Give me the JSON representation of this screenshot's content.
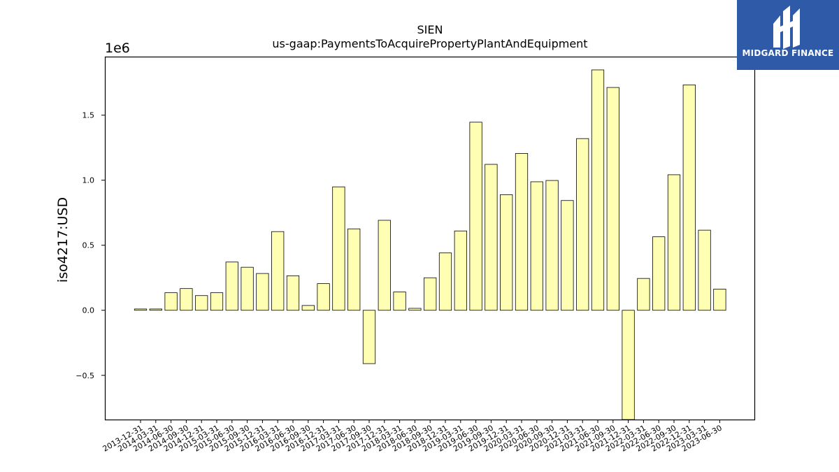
{
  "chart_data": {
    "type": "bar",
    "title": "SIEN",
    "subtitle": "us-gaap:PaymentsToAcquirePropertyPlantAndEquipment",
    "ylabel": "iso4217:USD",
    "xlabel": "",
    "offset_label": "1e6",
    "categories": [
      "2013-12-31",
      "2014-03-31",
      "2014-06-30",
      "2014-09-30",
      "2014-12-31",
      "2015-03-31",
      "2015-06-30",
      "2015-09-30",
      "2015-12-31",
      "2016-03-31",
      "2016-06-30",
      "2016-09-30",
      "2016-12-31",
      "2017-03-31",
      "2017-06-30",
      "2017-09-30",
      "2017-12-31",
      "2018-03-31",
      "2018-06-30",
      "2018-09-30",
      "2018-12-31",
      "2019-03-31",
      "2019-06-30",
      "2019-09-30",
      "2019-12-31",
      "2020-03-31",
      "2020-06-30",
      "2020-09-30",
      "2020-12-31",
      "2021-03-31",
      "2021-06-30",
      "2021-09-30",
      "2021-12-31",
      "2022-03-31",
      "2022-06-30",
      "2022-09-30",
      "2022-12-31",
      "2023-03-31",
      "2023-06-30"
    ],
    "values": [
      10000,
      10000,
      135000,
      167000,
      113000,
      135000,
      371000,
      331000,
      283000,
      605000,
      265000,
      37000,
      205000,
      949000,
      626000,
      -410000,
      692000,
      141000,
      15000,
      250000,
      441000,
      610000,
      1446000,
      1122000,
      889000,
      1206000,
      988000,
      998000,
      844000,
      1320000,
      1848000,
      1713000,
      -840000,
      245000,
      565000,
      1042000,
      1733000,
      616000,
      163000
    ],
    "ylim": [
      -840000,
      1950000
    ],
    "yticks": [
      -500000,
      0,
      500000,
      1000000,
      1500000
    ],
    "ytick_labels": [
      "−0.5",
      "0.0",
      "0.5",
      "1.0",
      "1.5"
    ],
    "bar_color": "#ffffb3",
    "edge_color": "#000000",
    "grid": false,
    "legend": "none"
  },
  "logo": {
    "text": "MIDGARD FINANCE",
    "background": "#2e5aa8"
  }
}
